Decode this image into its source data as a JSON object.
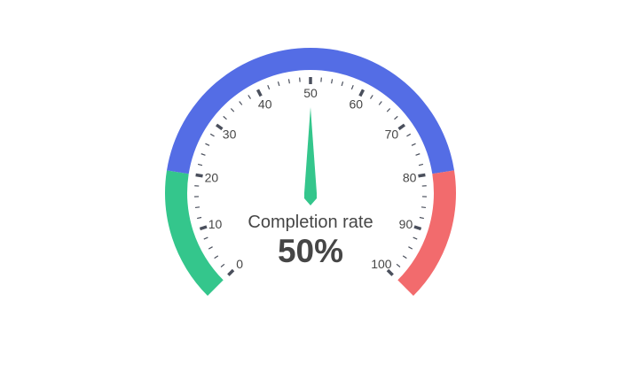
{
  "chart_data": {
    "type": "gauge",
    "title": "Completion rate",
    "value": 50,
    "value_label": "50%",
    "min": 0,
    "max": 100,
    "tick_labels": [
      "0",
      "10",
      "20",
      "30",
      "40",
      "50",
      "60",
      "70",
      "80",
      "90",
      "100"
    ],
    "bands": [
      {
        "from": 0,
        "to": 20,
        "color": "#34c68c"
      },
      {
        "from": 20,
        "to": 80,
        "color": "#546de5"
      },
      {
        "from": 80,
        "to": 100,
        "color": "#f26b6d"
      }
    ],
    "pointer_color": "#34c68c",
    "tick_color": "#4a4f5c"
  }
}
